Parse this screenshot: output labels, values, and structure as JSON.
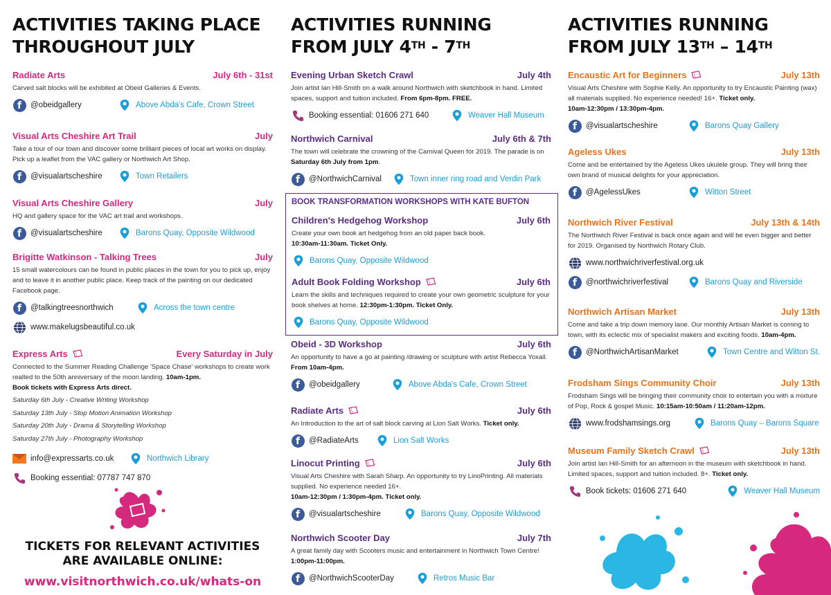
{
  "colors": {
    "pink": "#d5297e",
    "purple": "#5a2d82",
    "orange": "#e8731c",
    "link_blue": "#1b9ed8",
    "facebook": "#3b5a99"
  },
  "col1": {
    "heading_l1": "ACTIVITIES TAKING PLACE",
    "heading_l2": "THROUGHOUT JULY",
    "events": [
      {
        "title": "Radiate Arts",
        "date": "July 6th - 31st",
        "desc": "Carved salt blocks will be exhibited at Obeid Galleries & Events.",
        "social": "@obeidgallery",
        "location": "Above Abda's Cafe, Crown Street"
      },
      {
        "title": "Visual Arts Cheshire Art Trail",
        "date": "July",
        "desc": "Take a tour of our town and discover some brilliant pieces of local art works on display. Pick up a leaflet from the VAC gallery or Northwich Art Shop.",
        "social": "@visualartscheshire",
        "location": "Town Retailers"
      },
      {
        "title": "Visual Arts Cheshire Gallery",
        "date": "July",
        "desc": "HQ and gallery space for the VAC art trail and workshops.",
        "social": "@visualartscheshire",
        "location": "Barons Quay, Opposite Wildwood"
      },
      {
        "title": "Brigitte Watkinson - Talking Trees",
        "date": "July",
        "desc": "15 small watercolours can be found in public places in the town for you to pick up, enjoy and to leave it in another public place. Keep track of the painting on our dedicated Facebook page.",
        "social": "@talkingtreesnorthwich",
        "location": "Across the town centre",
        "web": "www.makelugsbeautiful.co.uk"
      },
      {
        "title": "Express Arts",
        "date": "Every Saturday in July",
        "desc": "Connected to the Summer Reading Challenge 'Space Chase' workshops to create work realted to the 50th anniversary of the moon landing.",
        "desc_bold": "10am-1pm.",
        "desc_bold2": "Book tickets with Express Arts direct.",
        "list": [
          "Saturday 6th July - Creative Writing Workshop",
          "Saturday 13th July - Stop Motion Animation Workshop",
          "Saturday 20th July - Drama & Storytelling Workshop",
          "Saturday 27th July - Photography Workshop"
        ],
        "email": "info@expressarts.co.uk",
        "location": "Northwich Library",
        "phone": "Booking essential: 07787 747 870"
      }
    ],
    "tickets_l1": "TICKETS FOR RELEVANT ACTIVITIES",
    "tickets_l2": "ARE AVAILABLE ONLINE:",
    "tickets_url": "www.visitnorthwich.co.uk/whats-on"
  },
  "col2": {
    "heading_l1": "ACTIVITIES RUNNING",
    "heading_l2a": "FROM JULY 4",
    "heading_sup1": "TH",
    "heading_l2b": " - 7",
    "heading_sup2": "TH",
    "events": [
      {
        "title": "Evening Urban Sketch Crawl",
        "date": "July 4th",
        "desc": "Join artist Ian Hill-Smith on a walk around Northwich with sketchbook in hand. Limited spaces, support and tuition included.",
        "desc_bold": "From 6pm-8pm. FREE.",
        "phone": "Booking essential: 01606 271 640",
        "location": "Weaver Hall Museum"
      },
      {
        "title": "Northwich Carnival",
        "date": "July 6th & 7th",
        "desc": "The town will celebrate the crowning of the Carnival Queen for 2019. The parade is on",
        "desc_bold": "Saturday 6th July from 1pm",
        "desc_end": ".",
        "social": "@NorthwichCarnival",
        "location": "Town inner ring road and Verdin Park"
      },
      {
        "title": "Obeid - 3D Workshop",
        "date": "July 6th",
        "desc": "An opportunity to have a go at painting /drawing or sculpture with artist Rebecca Yoxall.",
        "desc_bold": "From 10am-4pm.",
        "social": "@obeidgallery",
        "location": "Above Abda's Cafe, Crown Street"
      },
      {
        "title": "Radiate Arts",
        "date": "July 6th",
        "desc": "An Introduction to the art of salt block carving at Lion Salt Works.",
        "desc_bold": "Ticket only.",
        "social": "@RadiateArts",
        "location": "Lion Salt Works"
      },
      {
        "title": "Linocut Printing",
        "date": "July 6th",
        "desc": "Visual Arts Cheshire with Sarah Sharp. An opportunity to try LinoPrinting. All materials supplied. No experience needed 16+.",
        "desc_bold": "10am-12:30pm / 1:30pm-4pm.",
        "desc_bold2": "Ticket only.",
        "social": "@visualartscheshire",
        "location": "Barons Quay, Opposite Wildwood"
      },
      {
        "title": "Northwich Scooter Day",
        "date": "July 7th",
        "desc": "A great family day with Scooters music and entertainment in Northwich Town Centre!",
        "desc_bold": "1:00pm-11:00pm.",
        "social": "@NorthwichScooterDay",
        "location": "Retros Music Bar"
      }
    ],
    "book_box": {
      "heading": "BOOK TRANSFORMATION WORKSHOPS WITH KATE BUFTON",
      "events": [
        {
          "title": "Children's Hedgehog Workshop",
          "date": "July 6th",
          "desc": "Create your own book art hedgehog from an old paper back book.",
          "desc_bold": "10:30am-11:30am. Ticket Only.",
          "location": "Barons Quay, Opposite Wildwood"
        },
        {
          "title": "Adult Book Folding Workshop",
          "date": "July 6th",
          "desc": "Learn the skills and techniques required to create your own geometric sculpture for your book shelves at home.",
          "desc_bold": "12:30pm-1:30pm. Ticket Only.",
          "location": "Barons Quay, Opposite Wildwood"
        }
      ]
    }
  },
  "col3": {
    "heading_l1": "ACTIVITIES RUNNING",
    "heading_l2a": "FROM JULY 13",
    "heading_sup1": "TH",
    "heading_l2b": " – 14",
    "heading_sup2": "TH",
    "events": [
      {
        "title": "Encaustic Art for Beginners",
        "date": "July 13th",
        "desc": "Visual Arts Cheshire with Sophie Kelly. An opportunity to try Encaustic Painting (wax) all materials supplied. No experience needed! 16+.",
        "desc_bold": "Ticket only.",
        "desc_bold2": "10am-12:30pm / 13:30pm-4pm.",
        "social": "@visualartscheshire",
        "location": "Barons Quay Gallery"
      },
      {
        "title": "Ageless Ukes",
        "date": "July 13th",
        "desc": "Come and be entertained by the Ageless Ukes ukulele group. They will bring their own brand of musical delights for your appreciation.",
        "social": "@AgelessUkes",
        "location": "Witton Street"
      },
      {
        "title": "Northwich River Festival",
        "date": "July 13th & 14th",
        "desc": "The Northwich River Festival is back once again and will be even bigger and better for 2019. Organised by Northwich Rotary Club.",
        "web": "www.northwichriverfestival.org.uk",
        "social": "@northwichriverfestival",
        "location": "Barons Quay and Riverside"
      },
      {
        "title": "Northwich Artisan Market",
        "date": "July 13th",
        "desc": "Come and take a trip down memory lane. Our monthly Artisan Market is coming to town, with its eclectic mix of specialist makers and exciting foods.",
        "desc_bold": "10am-4pm.",
        "social": "@NorthwichArtisanMarket",
        "location": "Town Centre and Witton St."
      },
      {
        "title": "Frodsham Sings Community Choir",
        "date": "July 13th",
        "desc": "Frodsham Sings will be bringing their community choir to entertain you with a mixture of Pop, Rock & gospel Music.",
        "desc_bold": "10:15am-10:50am / 11:20am-12pm.",
        "web": "www.frodshamsings.org",
        "location": "Barons Quay – Barons Square"
      },
      {
        "title": "Museum Family Sketch Crawl",
        "date": "July 13th",
        "desc": "Join artist Ian Hill-Smith for an afternoon in the museum with sketchbook in hand. Limited spaces, support and tuition included. 8+.",
        "desc_bold": "Ticket only.",
        "phone": "Book tickets: 01606 271 640",
        "location": "Weaver Hall Museum"
      }
    ]
  }
}
